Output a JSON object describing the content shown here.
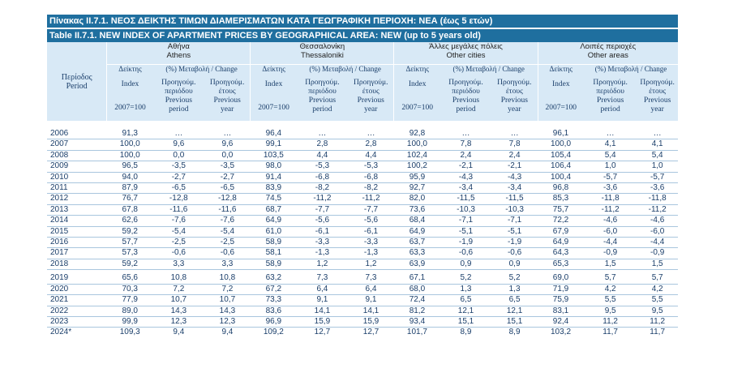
{
  "title_gr": "Πίνακας II.7.1. ΝΕΟΣ ΔΕΙΚΤΗΣ ΤΙΜΩΝ ΔΙΑΜΕΡΙΣΜΑΤΩΝ ΚΑΤΑ ΓΕΩΓΡΑΦΙΚΗ ΠΕΡΙΟΧΗ: ΝΕΑ (έως 5 ετών)",
  "title_en": "Table II.7.1. NEW INDEX OF APARTMENT PRICES BY GEOGRAPHICAL AREA: NEW (up to 5 years old)",
  "header": {
    "period_gr": "Περίοδος",
    "period_en": "Period",
    "areas": [
      {
        "gr": "Αθήνα",
        "en": "Athens"
      },
      {
        "gr": "Θεσσαλονίκη",
        "en": "Thessaloniki"
      },
      {
        "gr": "Άλλες μεγάλες πόλεις",
        "en": "Other cities"
      },
      {
        "gr": "Λοιπές περιοχές",
        "en": "Other areas"
      }
    ],
    "index_gr": "Δείκτης",
    "change_label": "(%) Μεταβολή / Change",
    "index_en": "Index",
    "base": "2007=100",
    "prev_period_gr": [
      "Προηγούμ.",
      "περιόδου"
    ],
    "prev_year_gr": [
      "Προηγούμ.",
      "έτους"
    ],
    "prev_period_en": [
      "Previous",
      "period"
    ],
    "prev_year_en": [
      "Previous",
      "year"
    ]
  },
  "rows": [
    {
      "year": "2006",
      "v": [
        "91,3",
        "…",
        "…",
        "96,4",
        "…",
        "…",
        "92,8",
        "…",
        "…",
        "96,1",
        "…",
        "…"
      ]
    },
    {
      "year": "2007",
      "v": [
        "100,0",
        "9,6",
        "9,6",
        "99,1",
        "2,8",
        "2,8",
        "100,0",
        "7,8",
        "7,8",
        "100,0",
        "4,1",
        "4,1"
      ]
    },
    {
      "year": "2008",
      "v": [
        "100,0",
        "0,0",
        "0,0",
        "103,5",
        "4,4",
        "4,4",
        "102,4",
        "2,4",
        "2,4",
        "105,4",
        "5,4",
        "5,4"
      ]
    },
    {
      "year": "2009",
      "v": [
        "96,5",
        "-3,5",
        "-3,5",
        "98,0",
        "-5,3",
        "-5,3",
        "100,2",
        "-2,1",
        "-2,1",
        "106,4",
        "1,0",
        "1,0"
      ]
    },
    {
      "year": "2010",
      "v": [
        "94,0",
        "-2,7",
        "-2,7",
        "91,4",
        "-6,8",
        "-6,8",
        "95,9",
        "-4,3",
        "-4,3",
        "100,4",
        "-5,7",
        "-5,7"
      ]
    },
    {
      "year": "2011",
      "v": [
        "87,9",
        "-6,5",
        "-6,5",
        "83,9",
        "-8,2",
        "-8,2",
        "92,7",
        "-3,4",
        "-3,4",
        "96,8",
        "-3,6",
        "-3,6"
      ]
    },
    {
      "year": "2012",
      "v": [
        "76,7",
        "-12,8",
        "-12,8",
        "74,5",
        "-11,2",
        "-11,2",
        "82,0",
        "-11,5",
        "-11,5",
        "85,3",
        "-11,8",
        "-11,8"
      ]
    },
    {
      "year": "2013",
      "v": [
        "67,8",
        "-11,6",
        "-11,6",
        "68,7",
        "-7,7",
        "-7,7",
        "73,6",
        "-10,3",
        "-10,3",
        "75,7",
        "-11,2",
        "-11,2"
      ]
    },
    {
      "year": "2014",
      "v": [
        "62,6",
        "-7,6",
        "-7,6",
        "64,9",
        "-5,6",
        "-5,6",
        "68,4",
        "-7,1",
        "-7,1",
        "72,2",
        "-4,6",
        "-4,6"
      ]
    },
    {
      "year": "2015",
      "v": [
        "59,2",
        "-5,4",
        "-5,4",
        "61,0",
        "-6,1",
        "-6,1",
        "64,9",
        "-5,1",
        "-5,1",
        "67,9",
        "-6,0",
        "-6,0"
      ]
    },
    {
      "year": "2016",
      "v": [
        "57,7",
        "-2,5",
        "-2,5",
        "58,9",
        "-3,3",
        "-3,3",
        "63,7",
        "-1,9",
        "-1,9",
        "64,9",
        "-4,4",
        "-4,4"
      ]
    },
    {
      "year": "2017",
      "v": [
        "57,3",
        "-0,6",
        "-0,6",
        "58,1",
        "-1,3",
        "-1,3",
        "63,3",
        "-0,6",
        "-0,6",
        "64,3",
        "-0,9",
        "-0,9"
      ]
    },
    {
      "year": "2018",
      "v": [
        "59,2",
        "3,3",
        "3,3",
        "58,9",
        "1,2",
        "1,2",
        "63,9",
        "0,9",
        "0,9",
        "65,3",
        "1,5",
        "1,5"
      ]
    },
    {
      "year": "2019",
      "v": [
        "65,6",
        "10,8",
        "10,8",
        "63,2",
        "7,3",
        "7,3",
        "67,1",
        "5,2",
        "5,2",
        "69,0",
        "5,7",
        "5,7"
      ]
    },
    {
      "year": "2020",
      "v": [
        "70,3",
        "7,2",
        "7,2",
        "67,2",
        "6,4",
        "6,4",
        "68,0",
        "1,3",
        "1,3",
        "71,9",
        "4,2",
        "4,2"
      ]
    },
    {
      "year": "2021",
      "v": [
        "77,9",
        "10,7",
        "10,7",
        "73,3",
        "9,1",
        "9,1",
        "72,4",
        "6,5",
        "6,5",
        "75,9",
        "5,5",
        "5,5"
      ]
    },
    {
      "year": "2022",
      "v": [
        "89,0",
        "14,3",
        "14,3",
        "83,6",
        "14,1",
        "14,1",
        "81,2",
        "12,1",
        "12,1",
        "83,1",
        "9,5",
        "9,5"
      ]
    },
    {
      "year": "2023",
      "v": [
        "99,9",
        "12,3",
        "12,3",
        "96,9",
        "15,9",
        "15,9",
        "93,4",
        "15,1",
        "15,1",
        "92,4",
        "11,2",
        "11,2"
      ]
    },
    {
      "year": "2024*",
      "v": [
        "109,3",
        "9,4",
        "9,4",
        "109,2",
        "12,7",
        "12,7",
        "101,7",
        "8,9",
        "8,9",
        "103,2",
        "11,7",
        "11,7"
      ]
    }
  ]
}
